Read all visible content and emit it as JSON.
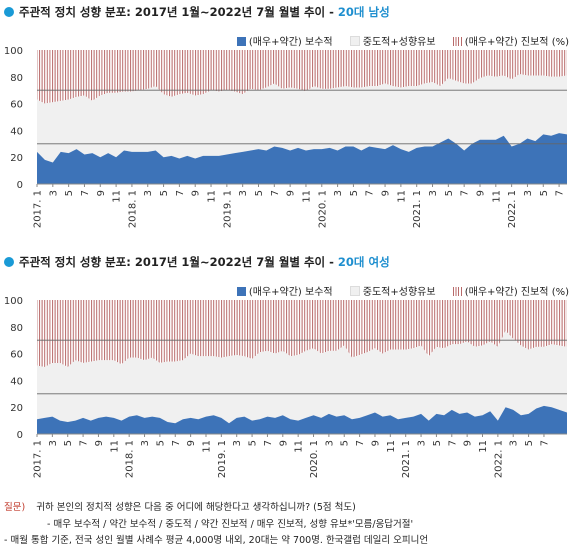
{
  "panels": [
    {
      "title_main": "주관적 정치 성향 분포: 2017년 1월~2022년 7월 월별 추이 - ",
      "title_group": "20대 남성"
    },
    {
      "title_main": "주관적 정치 성향 분포: 2017년 1월~2022년 7월 월별 추이 - ",
      "title_group": "20대 여성"
    }
  ],
  "legend": {
    "conservative": "(매우+약간) 보수적",
    "middle": "중도적+성향유보",
    "progressive": "(매우+약간) 진보적 (%)"
  },
  "colors": {
    "conservative": "#3d73b8",
    "middle": "#f0f0f0",
    "progressive": "#b86a6a",
    "title_dot": "#1a9ad6",
    "title_highlight": "#1f8fcf",
    "footnote_label": "#c0392b"
  },
  "footnote": {
    "label": "질문)",
    "question": "귀하 본인의 정치적 성향은 다음 중 어디에 해당한다고 생각하십니까? (5점 척도)",
    "options": "- 매우 보수적 /  약간 보수적 / 중도적 / 약간 진보적 / 매우 진보적, 성향 유보*'모름/응답거절'",
    "method": "- 매월 통합 기준, 전국 성인 월별 사례수 평균 4,000명 내외, 20대는 약 700명. 한국갤럽 데일리 오피니언"
  },
  "chart_data": [
    {
      "type": "area",
      "stacked": true,
      "x_start": "2017-01",
      "x_end": "2022-07",
      "ylim": [
        0,
        100
      ],
      "yticks": [
        0,
        20,
        40,
        60,
        80,
        100
      ],
      "xtick_labels": [
        "2017. 1",
        "3",
        "5",
        "7",
        "9",
        "11",
        "2018. 1",
        "3",
        "5",
        "7",
        "9",
        "11",
        "2019. 1",
        "3",
        "5",
        "7",
        "9",
        "11",
        "2020. 1",
        "3",
        "5",
        "7",
        "9",
        "11",
        "2021. 1",
        "3",
        "5",
        "7",
        "9",
        "11",
        "2022. 1",
        "3",
        "5",
        "7"
      ],
      "reference_lines": [
        30,
        70
      ],
      "series": [
        {
          "name": "(매우+약간) 보수적",
          "values": [
            24,
            18,
            16,
            24,
            23,
            26,
            22,
            23,
            20,
            23,
            20,
            25,
            24,
            24,
            24,
            25,
            20,
            21,
            19,
            21,
            19,
            21,
            21,
            21,
            22,
            23,
            24,
            25,
            26,
            25,
            28,
            27,
            25,
            27,
            25,
            26,
            26,
            27,
            25,
            28,
            28,
            25,
            28,
            27,
            26,
            29,
            26,
            24,
            27,
            28,
            28,
            31,
            34,
            30,
            25,
            30,
            33,
            33,
            33,
            36,
            28,
            30,
            34,
            32,
            37,
            36,
            38,
            37
          ]
        },
        {
          "name": "중도적+성향유보",
          "values": [
            39,
            42,
            45,
            38,
            40,
            39,
            44,
            39,
            46,
            45,
            48,
            44,
            45,
            46,
            47,
            48,
            47,
            44,
            48,
            47,
            47,
            46,
            49,
            48,
            48,
            46,
            43,
            46,
            44,
            47,
            47,
            44,
            47,
            44,
            44,
            47,
            45,
            44,
            47,
            45,
            44,
            47,
            45,
            46,
            49,
            44,
            46,
            49,
            46,
            47,
            48,
            42,
            45,
            47,
            50,
            45,
            46,
            48,
            47,
            45,
            50,
            52,
            47,
            49,
            44,
            44,
            42,
            44
          ]
        },
        {
          "name": "(매우+약간) 진보적",
          "values": [
            37,
            40,
            39,
            38,
            37,
            35,
            34,
            38,
            34,
            32,
            32,
            31,
            31,
            30,
            29,
            27,
            33,
            35,
            33,
            32,
            34,
            33,
            30,
            31,
            30,
            31,
            33,
            29,
            30,
            28,
            25,
            29,
            28,
            29,
            31,
            27,
            29,
            29,
            28,
            27,
            28,
            28,
            27,
            27,
            25,
            27,
            28,
            27,
            27,
            25,
            24,
            27,
            21,
            23,
            25,
            25,
            21,
            19,
            20,
            19,
            22,
            18,
            19,
            19,
            19,
            20,
            20,
            19
          ]
        }
      ]
    },
    {
      "type": "area",
      "stacked": true,
      "x_start": "2017-01",
      "x_end": "2022-07",
      "ylim": [
        0,
        100
      ],
      "yticks": [
        0,
        20,
        40,
        60,
        80,
        100
      ],
      "xtick_labels": [
        "2017. 1",
        "3",
        "5",
        "7",
        "9",
        "11",
        "2018. 1",
        "3",
        "5",
        "7",
        "9",
        "11",
        "2019. 1",
        "3",
        "5",
        "7",
        "9",
        "11",
        "2020. 1",
        "3",
        "5",
        "7",
        "9",
        "11",
        "2021. 1",
        "3",
        "5",
        "7",
        "9",
        "11",
        "2022. 1",
        "3",
        "5",
        "7"
      ],
      "reference_lines": [
        30,
        70
      ],
      "series": [
        {
          "name": "(매우+약간) 보수적",
          "values": [
            11,
            12,
            13,
            10,
            9,
            10,
            12,
            10,
            12,
            13,
            12,
            10,
            13,
            14,
            12,
            13,
            12,
            9,
            8,
            11,
            12,
            11,
            13,
            14,
            12,
            8,
            12,
            13,
            10,
            11,
            13,
            12,
            14,
            11,
            10,
            12,
            14,
            12,
            15,
            13,
            14,
            11,
            12,
            14,
            16,
            13,
            14,
            11,
            12,
            13,
            15,
            10,
            15,
            14,
            18,
            15,
            16,
            13,
            14,
            17,
            10,
            20,
            18,
            14,
            15,
            19,
            21,
            20,
            18,
            16
          ]
        },
        {
          "name": "중도적+성향유보",
          "values": [
            40,
            38,
            40,
            43,
            41,
            45,
            41,
            44,
            43,
            42,
            43,
            42,
            44,
            43,
            43,
            44,
            41,
            45,
            46,
            44,
            48,
            47,
            45,
            44,
            45,
            50,
            47,
            45,
            46,
            50,
            49,
            48,
            48,
            47,
            49,
            50,
            50,
            48,
            47,
            49,
            52,
            46,
            47,
            47,
            48,
            47,
            49,
            52,
            51,
            51,
            51,
            48,
            50,
            50,
            49,
            52,
            53,
            52,
            52,
            52,
            55,
            57,
            53,
            52,
            48,
            46,
            44,
            47,
            48,
            49
          ]
        },
        {
          "name": "(매우+약간) 진보적",
          "values": [
            49,
            50,
            47,
            47,
            50,
            45,
            47,
            46,
            45,
            45,
            45,
            48,
            43,
            43,
            45,
            43,
            47,
            46,
            46,
            45,
            40,
            42,
            42,
            42,
            43,
            42,
            41,
            42,
            44,
            39,
            38,
            40,
            38,
            42,
            41,
            38,
            36,
            40,
            38,
            38,
            34,
            43,
            41,
            39,
            36,
            40,
            37,
            37,
            37,
            36,
            34,
            42,
            35,
            36,
            33,
            33,
            31,
            35,
            34,
            31,
            35,
            23,
            29,
            34,
            37,
            35,
            35,
            33,
            34,
            35
          ]
        }
      ]
    }
  ]
}
